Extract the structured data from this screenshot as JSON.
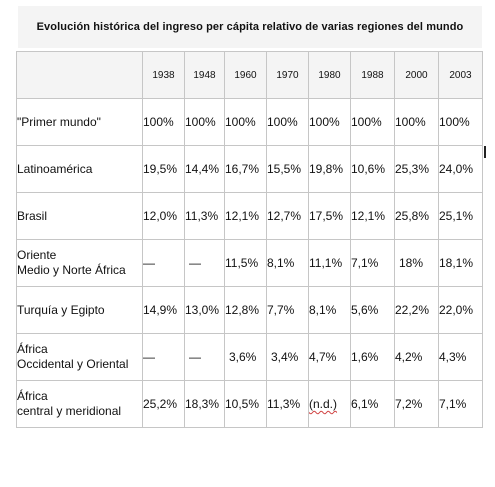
{
  "table": {
    "title": "Evolución histórica del ingreso per cápita relativo de varias regiones del mundo",
    "years": [
      "1938",
      "1948",
      "1960",
      "1970",
      "1980",
      "1988",
      "2000",
      "2003"
    ],
    "rows": [
      {
        "region": "\"Primer mundo\"",
        "values": [
          "100%",
          "100%",
          "100%",
          "100%",
          "100%",
          "100%",
          "100%",
          "100%"
        ]
      },
      {
        "region": "Latinoamérica",
        "values": [
          "19,5%",
          "14,4%",
          "16,7%",
          "15,5%",
          "19,8%",
          "10,6%",
          "25,3%",
          "24,0%"
        ]
      },
      {
        "region": "Brasil",
        "values": [
          "12,0%",
          "11,3%",
          "12,1%",
          "12,7%",
          "17,5%",
          "12,1%",
          "25,8%",
          "25,1%"
        ]
      },
      {
        "region_line1": "Oriente",
        "region_line2": "Medio y Norte África",
        "values": [
          "—",
          "—",
          "11,5%",
          "8,1%",
          "11,1%",
          "7,1%",
          "18%",
          "18,1%"
        ]
      },
      {
        "region": "Turquía  y Egipto",
        "values": [
          "14,9%",
          "13,0%",
          "12,8%",
          "7,7%",
          "8,1%",
          "5,6%",
          "22,2%",
          "22,0%"
        ]
      },
      {
        "region_line1": "África",
        "region_line2": "Occidental y Oriental",
        "values": [
          "—",
          "—",
          "3,6%",
          "3,4%",
          "4,7%",
          "1,6%",
          "4,2%",
          "4,3%"
        ]
      },
      {
        "region_line1": "África",
        "region_line2": "central y meridional",
        "values": [
          "25,2%",
          "18,3%",
          "10,5%",
          "11,3%",
          "(n.d.)",
          "6,1%",
          "7,2%",
          "7,1%"
        ]
      }
    ]
  }
}
